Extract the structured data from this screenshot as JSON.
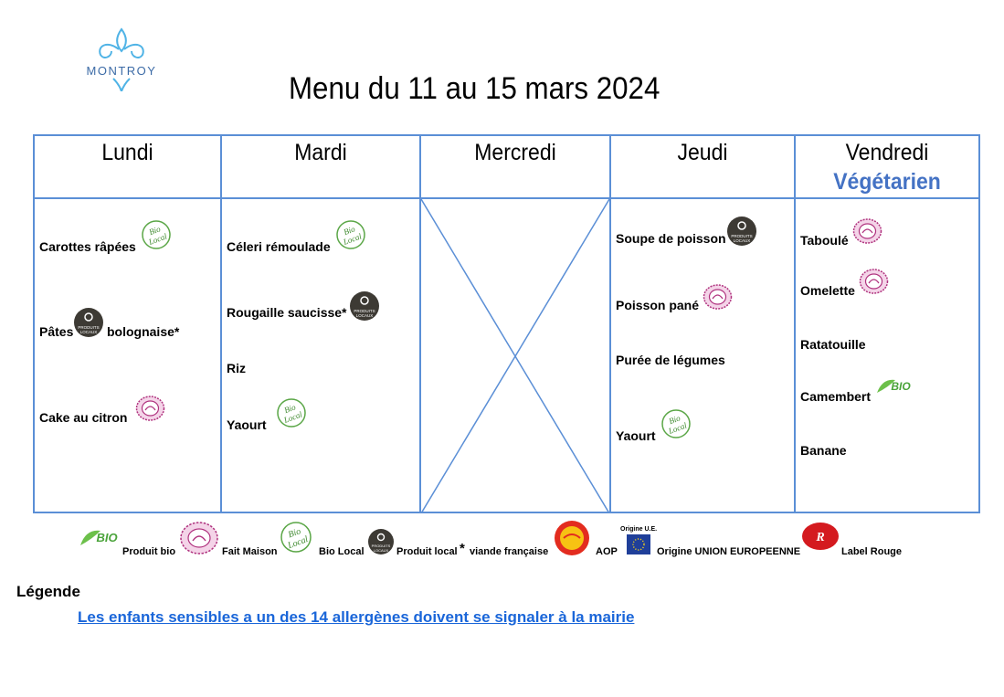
{
  "logo": {
    "text": "MONTROY"
  },
  "title": "Menu du 11 au 15 mars 2024",
  "days": [
    {
      "name": "Lundi",
      "dishes": [
        "Carottes râpées",
        "Pâtes",
        "bolognaise*",
        "Cake au citron"
      ]
    },
    {
      "name": "Mardi",
      "dishes": [
        "Céleri rémoulade",
        "Rougaille saucisse*",
        "Riz",
        "Yaourt"
      ]
    },
    {
      "name": "Mercredi",
      "dishes": []
    },
    {
      "name": "Jeudi",
      "dishes": [
        "Soupe de poisson",
        "Poisson pané",
        "Purée de légumes",
        "Yaourt"
      ]
    },
    {
      "name": "Vendredi",
      "subtitle": "Végétarien",
      "dishes": [
        "Taboulé",
        "Omelette",
        "Ratatouille",
        "Camembert",
        "Banane"
      ]
    }
  ],
  "badges": {
    "bio_local": "Bio Local",
    "produits_locaux": "PRODUITS LOCAUX",
    "bio": "Bio",
    "aop": "AOP",
    "label_rouge": "Label Rouge",
    "origine_ue": "Origine U.E."
  },
  "legend": {
    "items": [
      "Produit bio",
      "Fait Maison",
      "Bio Local",
      "Produit local",
      "*",
      "viande française",
      "AOP",
      "Origine UNION EUROPEENNE",
      "Label Rouge"
    ],
    "title": "Légende",
    "notice": "Les enfants sensibles a un des 14 allergènes doivent se signaler à la mairie"
  },
  "colors": {
    "border": "#5b8fd6",
    "vegetarian": "#4472c4",
    "link": "#1a66d9",
    "bio_green": "#4aa33a",
    "fait_maison": "#b0337f",
    "local_dark": "#3d3a34"
  }
}
